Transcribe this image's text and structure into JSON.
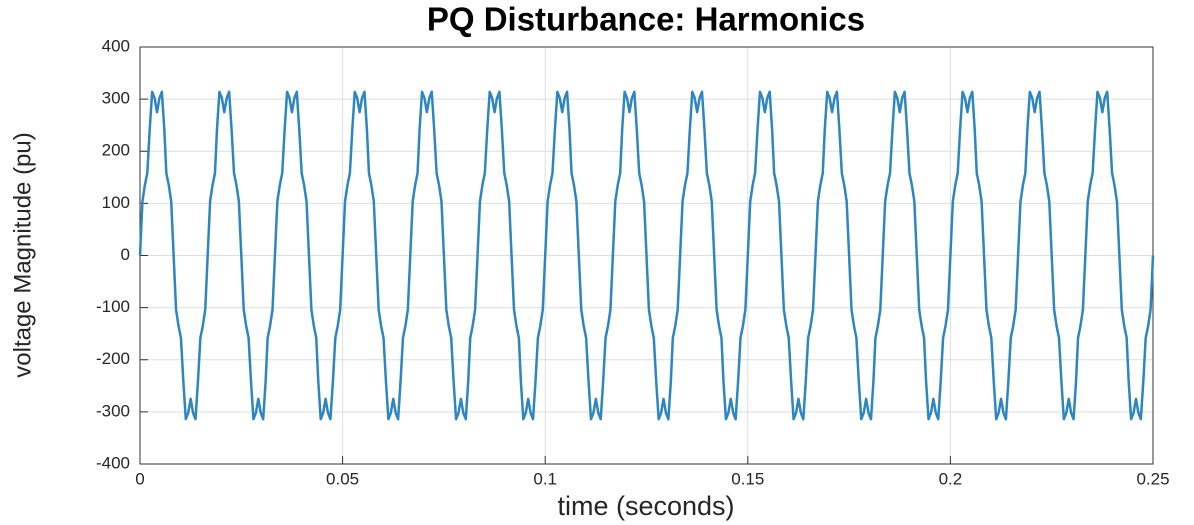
{
  "chart_data": {
    "type": "line",
    "title": "PQ Disturbance: Harmonics",
    "xlabel": "time (seconds)",
    "ylabel": "voltage Magnitude (pu)",
    "xlim": [
      0,
      0.25
    ],
    "xticks": [
      0,
      0.05,
      0.1,
      0.15,
      0.2,
      0.25
    ],
    "ylim": [
      -400,
      400
    ],
    "yticks": [
      -400,
      -300,
      -200,
      -100,
      0,
      100,
      200,
      300,
      400
    ],
    "grid": true,
    "x": [
      0,
      0.0006,
      0.0012,
      0.0018,
      0.0024,
      0.003,
      0.0036,
      0.0042,
      0.0048,
      0.0054,
      0.006,
      0.0065,
      0.0071,
      0.0077,
      0.0083,
      0.0089,
      0.0095,
      0.0101,
      0.0107,
      0.0113,
      0.0119,
      0.0125,
      0.0131,
      0.0137,
      0.0143,
      0.0149,
      0.0155,
      0.0161,
      0.0167,
      0.0173,
      0.0179,
      0.0185,
      0.019,
      0.0196,
      0.0202,
      0.0208,
      0.0214,
      0.022,
      0.0226,
      0.0232,
      0.0238,
      0.0244,
      0.025,
      0.0256,
      0.0262,
      0.0268,
      0.0274,
      0.028,
      0.0286,
      0.0292,
      0.0298,
      0.0304,
      0.031,
      0.0315,
      0.0321,
      0.0327,
      0.0333,
      0.0339,
      0.0345,
      0.0351,
      0.0357,
      0.0363,
      0.0369,
      0.0375,
      0.0381,
      0.0387,
      0.0393,
      0.0399,
      0.0405,
      0.0411,
      0.0417,
      0.0423,
      0.0429,
      0.0435,
      0.044,
      0.0446,
      0.0452,
      0.0458,
      0.0464,
      0.047,
      0.0476,
      0.0482,
      0.0488,
      0.0494,
      0.05,
      0.0506,
      0.0512,
      0.0518,
      0.0524,
      0.053,
      0.0536,
      0.0542,
      0.0548,
      0.0554,
      0.056,
      0.0565,
      0.0571,
      0.0577,
      0.0583,
      0.0589,
      0.0595,
      0.0601,
      0.0607,
      0.0613,
      0.0619,
      0.0625,
      0.0631,
      0.0637,
      0.0643,
      0.0649,
      0.0655,
      0.0661,
      0.0667,
      0.0673,
      0.0679,
      0.0685,
      0.069,
      0.0696,
      0.0702,
      0.0708,
      0.0714,
      0.072,
      0.0726,
      0.0732,
      0.0738,
      0.0744,
      0.075,
      0.0756,
      0.0762,
      0.0768,
      0.0774,
      0.078,
      0.0786,
      0.0792,
      0.0798,
      0.0804,
      0.081,
      0.0815,
      0.0821,
      0.0827,
      0.0833,
      0.0839,
      0.0845,
      0.0851,
      0.0857,
      0.0863,
      0.0869,
      0.0875,
      0.0881,
      0.0887,
      0.0893,
      0.0899,
      0.0905,
      0.0911,
      0.0917,
      0.0923,
      0.0929,
      0.0935,
      0.094,
      0.0946,
      0.0952,
      0.0958,
      0.0964,
      0.097,
      0.0976,
      0.0982,
      0.0988,
      0.0994,
      0.1,
      0.1006,
      0.1012,
      0.1018,
      0.1024,
      0.103,
      0.1036,
      0.1042,
      0.1048,
      0.1054,
      0.106,
      0.1065,
      0.1071,
      0.1077,
      0.1083,
      0.1089,
      0.1095,
      0.1101,
      0.1107,
      0.1113,
      0.1119,
      0.1125,
      0.1131,
      0.1137,
      0.1143,
      0.1149,
      0.1155,
      0.1161,
      0.1167,
      0.1173,
      0.1179,
      0.1185,
      0.119,
      0.1196,
      0.1202,
      0.1208,
      0.1214,
      0.122,
      0.1226,
      0.1232,
      0.1238,
      0.1244,
      0.125,
      0.1256,
      0.1262,
      0.1268,
      0.1274,
      0.128,
      0.1286,
      0.1292,
      0.1298,
      0.1304,
      0.131,
      0.1315,
      0.1321,
      0.1327,
      0.1333,
      0.1339,
      0.1345,
      0.1351,
      0.1357,
      0.1363,
      0.1369,
      0.1375,
      0.1381,
      0.1387,
      0.1393,
      0.1399,
      0.1405,
      0.1411,
      0.1417,
      0.1423,
      0.1429,
      0.1435,
      0.144,
      0.1446,
      0.1452,
      0.1458,
      0.1464,
      0.147,
      0.1476,
      0.1482,
      0.1488,
      0.1494,
      0.15,
      0.1506,
      0.1512,
      0.1518,
      0.1524,
      0.153,
      0.1536,
      0.1542,
      0.1548,
      0.1554,
      0.156,
      0.1565,
      0.1571,
      0.1577,
      0.1583,
      0.1589,
      0.1595,
      0.1601,
      0.1607,
      0.1613,
      0.1619,
      0.1625,
      0.1631,
      0.1637,
      0.1643,
      0.1649,
      0.1655,
      0.1661,
      0.1667,
      0.1673,
      0.1679,
      0.1685,
      0.169,
      0.1696,
      0.1702,
      0.1708,
      0.1714,
      0.172,
      0.1726,
      0.1732,
      0.1738,
      0.1744,
      0.175,
      0.1756,
      0.1762,
      0.1768,
      0.1774,
      0.178,
      0.1786,
      0.1792,
      0.1798,
      0.1804,
      0.181,
      0.1815,
      0.1821,
      0.1827,
      0.1833,
      0.1839,
      0.1845,
      0.1851,
      0.1857,
      0.1863,
      0.1869,
      0.1875,
      0.1881,
      0.1887,
      0.1893,
      0.1899,
      0.1905,
      0.1911,
      0.1917,
      0.1923,
      0.1929,
      0.1935,
      0.194,
      0.1946,
      0.1952,
      0.1958,
      0.1964,
      0.197,
      0.1976,
      0.1982,
      0.1988,
      0.1994,
      0.2,
      0.2006,
      0.2012,
      0.2018,
      0.2024,
      0.203,
      0.2036,
      0.2042,
      0.2048,
      0.2054,
      0.206,
      0.2065,
      0.2071,
      0.2077,
      0.2083,
      0.2089,
      0.2095,
      0.2101,
      0.2107,
      0.2113,
      0.2119,
      0.2125,
      0.2131,
      0.2137,
      0.2143,
      0.2149,
      0.2155,
      0.2161,
      0.2167,
      0.2173,
      0.2179,
      0.2185,
      0.219,
      0.2196,
      0.2202,
      0.2208,
      0.2214,
      0.222,
      0.2226,
      0.2232,
      0.2238,
      0.2244,
      0.225,
      0.2256,
      0.2262,
      0.2268,
      0.2274,
      0.228,
      0.2286,
      0.2292,
      0.2298,
      0.2304,
      0.231,
      0.2315,
      0.2321,
      0.2327,
      0.2333,
      0.2339,
      0.2345,
      0.2351,
      0.2357,
      0.2363,
      0.2369,
      0.2375,
      0.2381,
      0.2387,
      0.2393,
      0.2399,
      0.2405,
      0.2411,
      0.2417,
      0.2423,
      0.2429,
      0.2435,
      0.244,
      0.2446,
      0.2452,
      0.2458,
      0.2464,
      0.247,
      0.2476,
      0.2482,
      0.2488,
      0.2494,
      0.25
    ],
    "series": [
      {
        "color": "#2e86c1",
        "values": [
          0,
          104,
          135,
          158,
          242,
          314,
          302,
          275,
          302,
          314,
          242,
          158,
          135,
          104,
          0,
          -104,
          -135,
          -158,
          -242,
          -314,
          -302,
          -275,
          -302,
          -314,
          -242,
          -158,
          -135,
          -104,
          0,
          104,
          135,
          158,
          242,
          314,
          302,
          275,
          302,
          314,
          242,
          158,
          135,
          104,
          0,
          -104,
          -135,
          -158,
          -242,
          -314,
          -302,
          -275,
          -302,
          -314,
          -242,
          -158,
          -135,
          -104,
          0,
          104,
          135,
          158,
          242,
          314,
          302,
          275,
          302,
          314,
          242,
          158,
          135,
          104,
          0,
          -104,
          -135,
          -158,
          -242,
          -314,
          -302,
          -275,
          -302,
          -314,
          -242,
          -158,
          -135,
          -104,
          0,
          104,
          135,
          158,
          242,
          314,
          302,
          275,
          302,
          314,
          242,
          158,
          135,
          104,
          0,
          -104,
          -135,
          -158,
          -242,
          -314,
          -302,
          -275,
          -302,
          -314,
          -242,
          -158,
          -135,
          -104,
          0,
          104,
          135,
          158,
          242,
          314,
          302,
          275,
          302,
          314,
          242,
          158,
          135,
          104,
          0,
          -104,
          -135,
          -158,
          -242,
          -314,
          -302,
          -275,
          -302,
          -314,
          -242,
          -158,
          -135,
          -104,
          0,
          104,
          135,
          158,
          242,
          314,
          302,
          275,
          302,
          314,
          242,
          158,
          135,
          104,
          0,
          -104,
          -135,
          -158,
          -242,
          -314,
          -302,
          -275,
          -302,
          -314,
          -242,
          -158,
          -135,
          -104,
          0,
          104,
          135,
          158,
          242,
          314,
          302,
          275,
          302,
          314,
          242,
          158,
          135,
          104,
          0,
          -104,
          -135,
          -158,
          -242,
          -314,
          -302,
          -275,
          -302,
          -314,
          -242,
          -158,
          -135,
          -104,
          0,
          104,
          135,
          158,
          242,
          314,
          302,
          275,
          302,
          314,
          242,
          158,
          135,
          104,
          0,
          -104,
          -135,
          -158,
          -242,
          -314,
          -302,
          -275,
          -302,
          -314,
          -242,
          -158,
          -135,
          -104,
          0,
          104,
          135,
          158,
          242,
          314,
          302,
          275,
          302,
          314,
          242,
          158,
          135,
          104,
          0,
          -104,
          -135,
          -158,
          -242,
          -314,
          -302,
          -275,
          -302,
          -314,
          -242,
          -158,
          -135,
          -104,
          0,
          104,
          135,
          158,
          242,
          314,
          302,
          275,
          302,
          314,
          242,
          158,
          135,
          104,
          0,
          -104,
          -135,
          -158,
          -242,
          -314,
          -302,
          -275,
          -302,
          -314,
          -242,
          -158,
          -135,
          -104,
          0,
          104,
          135,
          158,
          242,
          314,
          302,
          275,
          302,
          314,
          242,
          158,
          135,
          104,
          0,
          -104,
          -135,
          -158,
          -242,
          -314,
          -302,
          -275,
          -302,
          -314,
          -242,
          -158,
          -135,
          -104,
          0,
          104,
          135,
          158,
          242,
          314,
          302,
          275,
          302,
          314,
          242,
          158,
          135,
          104,
          0,
          -104,
          -135,
          -158,
          -242,
          -314,
          -302,
          -275,
          -302,
          -314,
          -242,
          -158,
          -135,
          -104,
          0,
          104,
          135,
          158,
          242,
          314,
          302,
          275,
          302,
          314,
          242,
          158,
          135,
          104,
          0,
          -104,
          -135,
          -158,
          -242,
          -314,
          -302,
          -275,
          -302,
          -314,
          -242,
          -158,
          -135,
          -104,
          0,
          104,
          135,
          158,
          242,
          314,
          302,
          275,
          302,
          314,
          242,
          158,
          135,
          104,
          0,
          -104,
          -135,
          -158,
          -242,
          -314,
          -302,
          -275,
          -302,
          -314,
          -242,
          -158,
          -135,
          -104,
          0,
          104,
          135,
          158,
          242,
          314,
          302,
          275,
          302,
          314,
          242,
          158,
          135,
          104,
          0,
          -104,
          -135,
          -158,
          -242,
          -314,
          -302,
          -275,
          -302,
          -314,
          -242,
          -158,
          -135,
          -104,
          0
        ]
      }
    ]
  }
}
